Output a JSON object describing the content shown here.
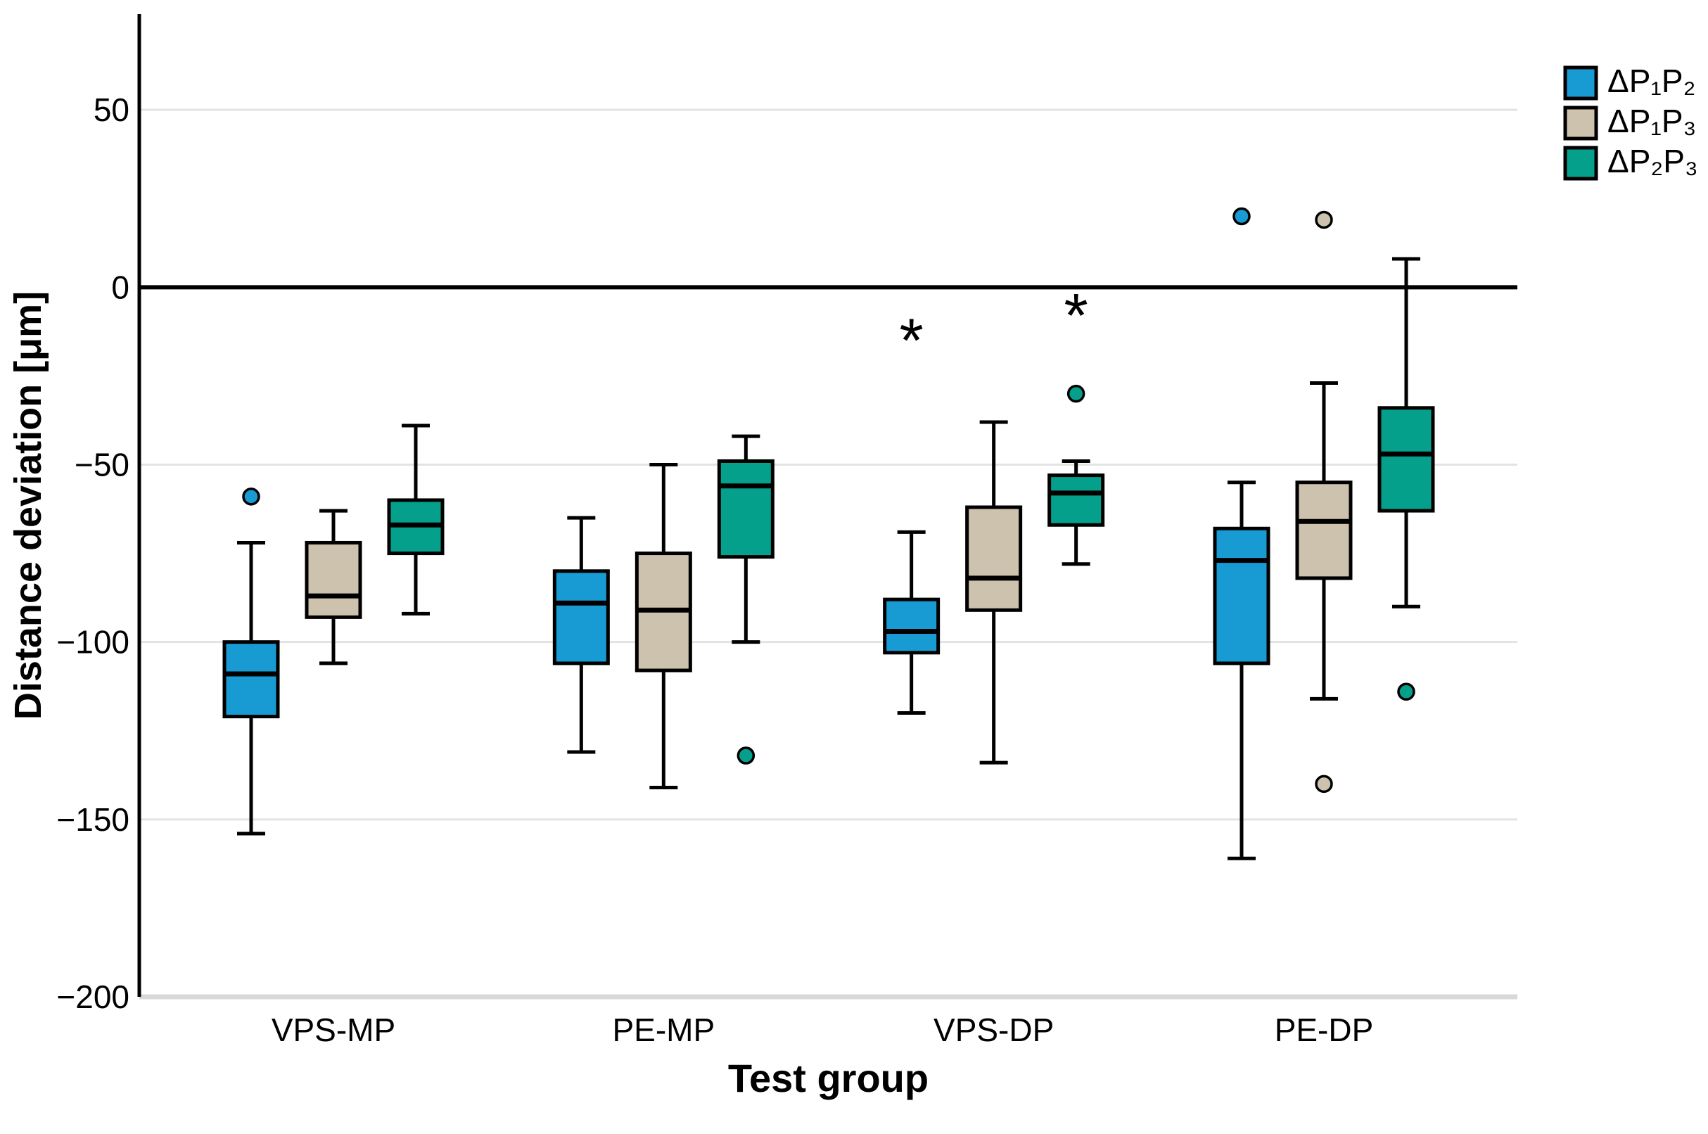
{
  "figure": {
    "background_color": "#ffffff",
    "text_color": "#000000"
  },
  "chart_data": {
    "type": "boxplot",
    "title": "",
    "xlabel": "Test group",
    "ylabel": "Distance deviation [μm]",
    "ylim": [
      -200,
      77
    ],
    "yticks": [
      50,
      0,
      -50,
      -100,
      -150,
      -200
    ],
    "ytick_labels": [
      "50",
      "0",
      "−50",
      "−100",
      "−150",
      "−200"
    ],
    "zero_line": 0,
    "grid": "on",
    "legend_position": "top-right",
    "categories": [
      "VPS-MP",
      "PE-MP",
      "VPS-DP",
      "PE-DP"
    ],
    "colors": {
      "gridline": "#e3e3e3",
      "zero_line": "#000000",
      "baseline_axis": "#d9d9d9",
      "axis_line": "#000000",
      "box_border": "#000000"
    },
    "series": [
      {
        "name": "ΔP₁P₂",
        "color": "#189ad3",
        "boxes": [
          {
            "group": "VPS-MP",
            "whisker_low": -154,
            "q1": -121,
            "median": -109,
            "q3": -100,
            "whisker_high": -72,
            "outliers": [
              {
                "type": "circle",
                "value": -59
              }
            ]
          },
          {
            "group": "PE-MP",
            "whisker_low": -131,
            "q1": -106,
            "median": -89,
            "q3": -80,
            "whisker_high": -65,
            "outliers": []
          },
          {
            "group": "VPS-DP",
            "whisker_low": -120,
            "q1": -103,
            "median": -97,
            "q3": -88,
            "whisker_high": -69,
            "outliers": [
              {
                "type": "asterisk",
                "value": -15
              }
            ]
          },
          {
            "group": "PE-DP",
            "whisker_low": -161,
            "q1": -106,
            "median": -77,
            "q3": -68,
            "whisker_high": -55,
            "outliers": [
              {
                "type": "circle",
                "value": 20
              }
            ]
          }
        ]
      },
      {
        "name": "ΔP₁P₃",
        "color": "#ccc2ad",
        "boxes": [
          {
            "group": "VPS-MP",
            "whisker_low": -106,
            "q1": -93,
            "median": -87,
            "q3": -72,
            "whisker_high": -63,
            "outliers": []
          },
          {
            "group": "PE-MP",
            "whisker_low": -141,
            "q1": -108,
            "median": -91,
            "q3": -75,
            "whisker_high": -50,
            "outliers": []
          },
          {
            "group": "VPS-DP",
            "whisker_low": -134,
            "q1": -91,
            "median": -82,
            "q3": -62,
            "whisker_high": -38,
            "outliers": []
          },
          {
            "group": "PE-DP",
            "whisker_low": -116,
            "q1": -82,
            "median": -66,
            "q3": -55,
            "whisker_high": -27,
            "outliers": [
              {
                "type": "circle",
                "value": 19
              },
              {
                "type": "circle",
                "value": -140
              }
            ]
          }
        ]
      },
      {
        "name": "ΔP₂P₃",
        "color": "#04a08b",
        "boxes": [
          {
            "group": "VPS-MP",
            "whisker_low": -92,
            "q1": -75,
            "median": -67,
            "q3": -60,
            "whisker_high": -39,
            "outliers": []
          },
          {
            "group": "PE-MP",
            "whisker_low": -100,
            "q1": -76,
            "median": -56,
            "q3": -49,
            "whisker_high": -42,
            "outliers": [
              {
                "type": "circle",
                "value": -132
              }
            ]
          },
          {
            "group": "VPS-DP",
            "whisker_low": -78,
            "q1": -67,
            "median": -58,
            "q3": -53,
            "whisker_high": -49,
            "outliers": [
              {
                "type": "circle",
                "value": -30
              },
              {
                "type": "asterisk",
                "value": -8
              }
            ]
          },
          {
            "group": "PE-DP",
            "whisker_low": -90,
            "q1": -63,
            "median": -47,
            "q3": -34,
            "whisker_high": 8,
            "outliers": [
              {
                "type": "circle",
                "value": -114
              }
            ]
          }
        ]
      }
    ]
  }
}
